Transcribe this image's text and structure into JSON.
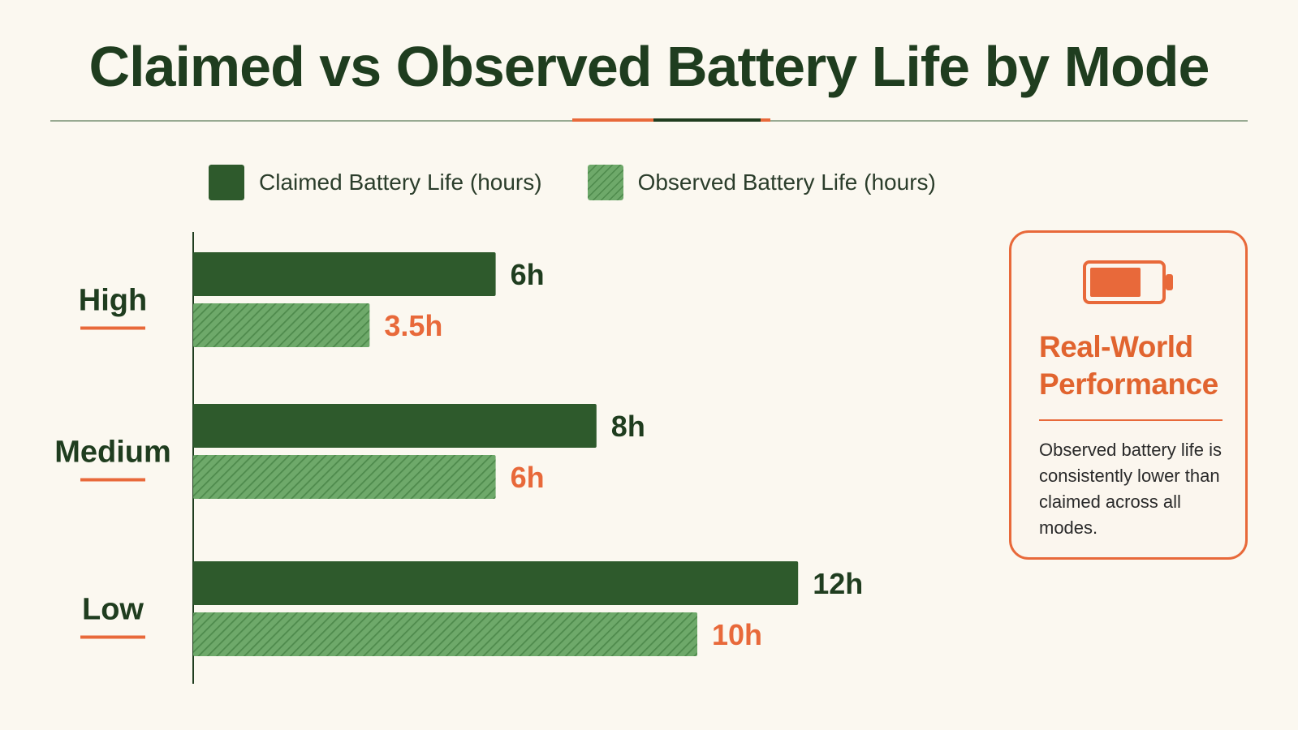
{
  "colors": {
    "claimed": "#2e5a2c",
    "observed": "#6ea96a",
    "observed_hatch": "#4e8a4c",
    "accent": "#e8693a",
    "dark_text": "#1f3d1f"
  },
  "chart_data": {
    "type": "bar",
    "orientation": "horizontal",
    "title": "Claimed vs Observed Battery Life by Mode",
    "categories": [
      "High",
      "Medium",
      "Low"
    ],
    "series": [
      {
        "name": "Claimed Battery Life (hours)",
        "values": [
          6,
          8,
          12
        ],
        "labels": [
          "6h",
          "8h",
          "12h"
        ],
        "color": "#2e5a2c",
        "pattern": "solid"
      },
      {
        "name": "Observed Battery Life (hours)",
        "values": [
          3.5,
          6,
          10
        ],
        "labels": [
          "3.5h",
          "6h",
          "10h"
        ],
        "color": "#6ea96a",
        "pattern": "hatched"
      }
    ],
    "xlim": [
      0,
      12
    ],
    "grid": false,
    "legend_position": "top-left"
  },
  "callout": {
    "icon": "battery-icon",
    "heading": "Real-World Performance",
    "body": "Observed battery life is consistently lower than claimed across all modes."
  }
}
